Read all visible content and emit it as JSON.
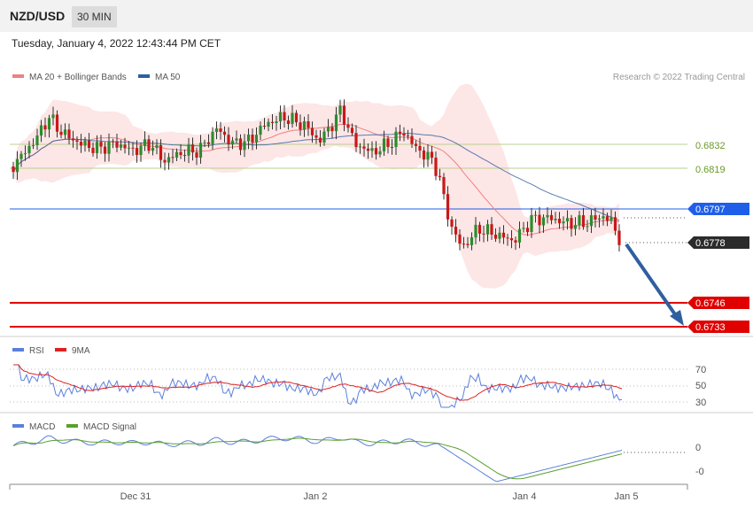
{
  "header": {
    "symbol": "NZD/USD",
    "timeframe": "30 MIN",
    "timestamp": "Tuesday, January 4, 2022 12:43:44 PM CET"
  },
  "legend": {
    "ma20": "MA 20 + Bollinger Bands",
    "ma50": "MA 50",
    "ma20_color": "#f08080",
    "ma50_color": "#2f5f9f",
    "credit": "Research © 2022 Trading Central"
  },
  "chart_data": {
    "type": "candlestick",
    "x_ticks": [
      "Dec 31",
      "Jan 2",
      "Jan 4",
      "Jan 5"
    ],
    "price_levels": [
      {
        "value": "0.6832",
        "style": "resistance-green",
        "color": "#8db35a"
      },
      {
        "value": "0.6819",
        "style": "resistance-green",
        "color": "#8db35a"
      },
      {
        "value": "0.6797",
        "style": "pivot-blue",
        "color": "#1f5ee8"
      },
      {
        "value": "0.6778",
        "style": "last-price",
        "color": "#2b2b2b"
      },
      {
        "value": "0.6746",
        "style": "support-red",
        "color": "#e00000"
      },
      {
        "value": "0.6733",
        "style": "support-red",
        "color": "#e00000"
      }
    ],
    "forecast": "down-arrow-to-0.6733",
    "rsi": {
      "legend": [
        "RSI",
        "9MA"
      ],
      "colors": [
        "#5b7fdc",
        "#e02020"
      ],
      "levels": [
        "70",
        "50",
        "30"
      ]
    },
    "macd": {
      "legend": [
        "MACD",
        "MACD Signal"
      ],
      "colors": [
        "#5b7fdc",
        "#5aa02c"
      ],
      "levels": [
        "0",
        "-0"
      ]
    }
  }
}
